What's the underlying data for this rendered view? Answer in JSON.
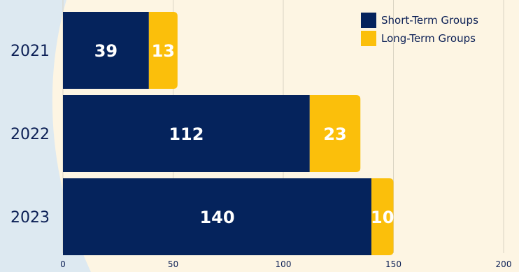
{
  "chart_data": {
    "type": "bar",
    "orientation": "horizontal",
    "stacked": true,
    "categories": [
      "2021",
      "2022",
      "2023"
    ],
    "series": [
      {
        "name": "Short-Term Groups",
        "values": [
          39,
          112,
          140
        ],
        "color": "#05235c"
      },
      {
        "name": "Long-Term Groups",
        "values": [
          13,
          23,
          10
        ],
        "color": "#fbbf0b"
      }
    ],
    "xlim": [
      0,
      200
    ],
    "xticks": [
      "0",
      "50",
      "100",
      "150",
      "200"
    ],
    "grid": true,
    "legend_position": "top-right",
    "title": "",
    "xlabel": "",
    "ylabel": ""
  },
  "colors": {
    "background": "#fdf5e3",
    "accent_shape": "#dde9f1",
    "text": "#0b1f55",
    "gridline": "#d9d3c3"
  }
}
